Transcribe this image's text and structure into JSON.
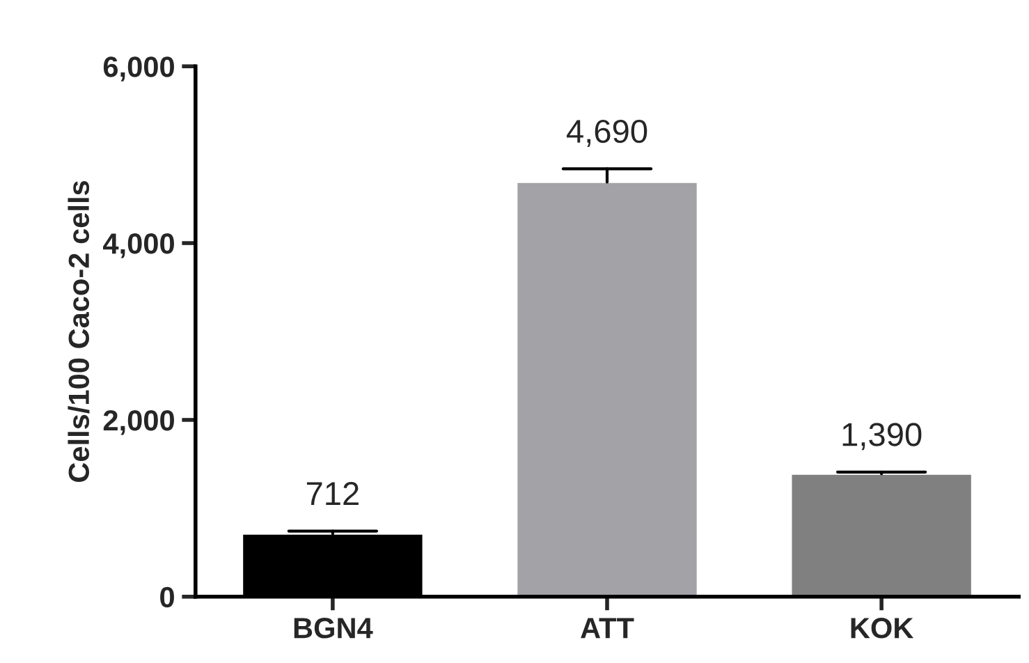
{
  "chart_data": {
    "type": "bar",
    "ylabel": "Cells/100 Caco-2 cells",
    "categories": [
      "BGN4",
      "ATT",
      "KOK"
    ],
    "values": [
      712,
      4690,
      1390
    ],
    "colors": [
      "#000000",
      "#a3a2a7",
      "#808080"
    ],
    "errors": [
      [
        712,
        742
      ],
      [
        4690,
        4840
      ],
      [
        1390,
        1410
      ]
    ],
    "value_labels": [
      "712",
      "4,690",
      "1,390"
    ],
    "ylim": [
      0,
      6000
    ],
    "yticks": [
      {
        "value": 0,
        "label": "0"
      },
      {
        "value": 2000,
        "label": "2,000"
      },
      {
        "value": 4000,
        "label": "4,000"
      },
      {
        "value": 6000,
        "label": "6,000"
      }
    ],
    "grid": false
  }
}
